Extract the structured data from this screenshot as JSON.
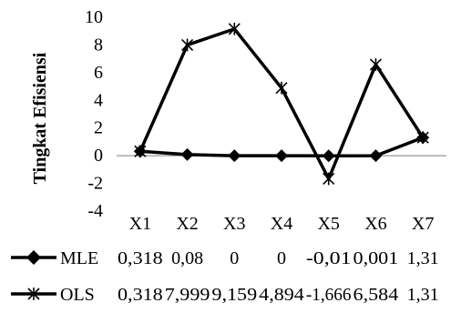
{
  "chart_data": {
    "type": "line",
    "title": "",
    "xlabel": "",
    "ylabel": "Tingkat Efisiensi",
    "ylim": [
      -4,
      10
    ],
    "y_ticks": [
      -4,
      -2,
      0,
      2,
      4,
      6,
      8,
      10
    ],
    "y_tick_labels": [
      "-4",
      "-2",
      "0",
      "2",
      "4",
      "6",
      "8",
      "10"
    ],
    "categories": [
      "X1",
      "X2",
      "X3",
      "X4",
      "X5",
      "X6",
      "X7"
    ],
    "grid": false,
    "legend": "data-table-below",
    "series": [
      {
        "name": "MLE",
        "marker": "diamond",
        "color": "#000000",
        "values": [
          0.318,
          0.08,
          0,
          0,
          -0.01,
          0.001,
          1.31
        ],
        "labels": [
          "0,318",
          "0,08",
          "0",
          "0",
          "-0,01",
          "0,001",
          "1,31"
        ]
      },
      {
        "name": "OLS",
        "marker": "star",
        "color": "#000000",
        "values": [
          0.318,
          7.999,
          9.159,
          4.894,
          -1.666,
          6.584,
          1.31
        ],
        "labels": [
          "0,318",
          "7,999",
          "9,159",
          "4,894",
          "-1,666",
          "6,584",
          "1,31"
        ]
      }
    ]
  }
}
